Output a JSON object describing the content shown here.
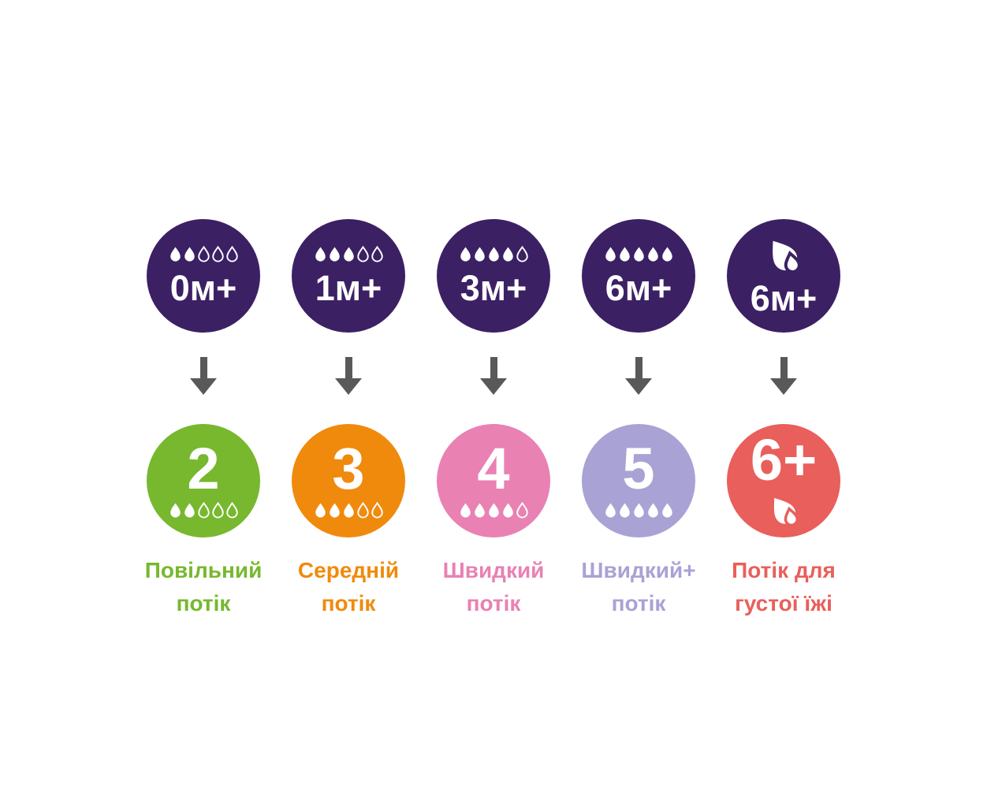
{
  "page": {
    "background": "#ffffff"
  },
  "top_circle_color": "#3c2064",
  "arrow_color": "#595959",
  "drops_total": 5,
  "columns": [
    {
      "id": "slow-flow",
      "age_label": "0м+",
      "drops_filled": 2,
      "icon": "droplet-scale",
      "nipple_number": "2",
      "color": "#77b82e",
      "label_line1": "Повільний",
      "label_line2": "потік"
    },
    {
      "id": "medium-flow",
      "age_label": "1м+",
      "drops_filled": 3,
      "icon": "droplet-scale",
      "nipple_number": "3",
      "color": "#f08a0c",
      "label_line1": "Середній",
      "label_line2": "потік"
    },
    {
      "id": "fast-flow",
      "age_label": "3м+",
      "drops_filled": 4,
      "icon": "droplet-scale",
      "nipple_number": "4",
      "color": "#e981b3",
      "label_line1": "Швидкий",
      "label_line2": "потік"
    },
    {
      "id": "fast-plus-flow",
      "age_label": "6м+",
      "drops_filled": 5,
      "icon": "droplet-scale",
      "nipple_number": "5",
      "color": "#a9a2d4",
      "label_line1": "Швидкий+",
      "label_line2": "потік"
    },
    {
      "id": "thick-feed-flow",
      "age_label": "6м+",
      "icon": "double-droplet-thick-feed",
      "nipple_number": "6+",
      "color": "#e95f5b",
      "label_line1": "Потік для",
      "label_line2": "густої їжі"
    }
  ]
}
